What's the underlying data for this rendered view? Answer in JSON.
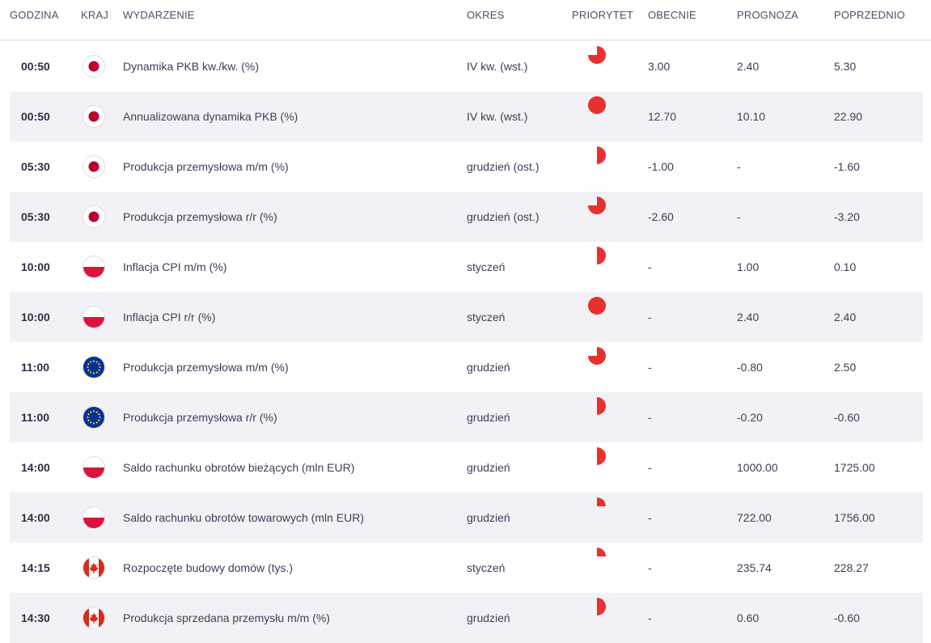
{
  "headers": {
    "time": "GODZINA",
    "country": "KRAJ",
    "event": "WYDARZENIE",
    "period": "OKRES",
    "priority": "PRIORYTET",
    "actual": "OBECNIE",
    "forecast": "PROGNOZA",
    "previous": "POPRZEDNIO"
  },
  "colors": {
    "priority": "#e8312f",
    "row_alt": "#f2f2f6",
    "divider": "#dcdde3"
  },
  "rows": [
    {
      "time": "00:50",
      "country_flag": "japan-flag-icon",
      "event": "Dynamika PKB kw./kw. (%)",
      "period": "IV kw. (wst.)",
      "priority": 0.75,
      "actual": "3.00",
      "forecast": "2.40",
      "previous": "5.30"
    },
    {
      "time": "00:50",
      "country_flag": "japan-flag-icon",
      "event": "Annualizowana dynamika PKB (%)",
      "period": "IV kw. (wst.)",
      "priority": 1.0,
      "actual": "12.70",
      "forecast": "10.10",
      "previous": "22.90"
    },
    {
      "time": "05:30",
      "country_flag": "japan-flag-icon",
      "event": "Produkcja przemysłowa m/m (%)",
      "period": "grudzień (ost.)",
      "priority": 0.5,
      "actual": "-1.00",
      "forecast": "-",
      "previous": "-1.60"
    },
    {
      "time": "05:30",
      "country_flag": "japan-flag-icon",
      "event": "Produkcja przemysłowa r/r (%)",
      "period": "grudzień (ost.)",
      "priority": 0.75,
      "actual": "-2.60",
      "forecast": "-",
      "previous": "-3.20"
    },
    {
      "time": "10:00",
      "country_flag": "poland-flag-icon",
      "event": "Inflacja CPI m/m (%)",
      "period": "styczeń",
      "priority": 0.5,
      "actual": "-",
      "forecast": "1.00",
      "previous": "0.10"
    },
    {
      "time": "10:00",
      "country_flag": "poland-flag-icon",
      "event": "Inflacja CPI r/r (%)",
      "period": "styczeń",
      "priority": 1.0,
      "actual": "-",
      "forecast": "2.40",
      "previous": "2.40"
    },
    {
      "time": "11:00",
      "country_flag": "eu-flag-icon",
      "event": "Produkcja przemysłowa m/m (%)",
      "period": "grudzień",
      "priority": 0.75,
      "actual": "-",
      "forecast": "-0.80",
      "previous": "2.50"
    },
    {
      "time": "11:00",
      "country_flag": "eu-flag-icon",
      "event": "Produkcja przemysłowa r/r (%)",
      "period": "grudzień",
      "priority": 0.5,
      "actual": "-",
      "forecast": "-0.20",
      "previous": "-0.60"
    },
    {
      "time": "14:00",
      "country_flag": "poland-flag-icon",
      "event": "Saldo rachunku obrotów bieżących (mln EUR)",
      "period": "grudzień",
      "priority": 0.5,
      "actual": "-",
      "forecast": "1000.00",
      "previous": "1725.00"
    },
    {
      "time": "14:00",
      "country_flag": "poland-flag-icon",
      "event": "Saldo rachunku obrotów towarowych (mln EUR)",
      "period": "grudzień",
      "priority": 0.25,
      "actual": "-",
      "forecast": "722.00",
      "previous": "1756.00"
    },
    {
      "time": "14:15",
      "country_flag": "canada-flag-icon",
      "event": "Rozpoczęte budowy domów (tys.)",
      "period": "styczeń",
      "priority": 0.25,
      "actual": "-",
      "forecast": "235.74",
      "previous": "228.27"
    },
    {
      "time": "14:30",
      "country_flag": "canada-flag-icon",
      "event": "Produkcja sprzedana przemysłu m/m (%)",
      "period": "grudzień",
      "priority": 0.5,
      "actual": "-",
      "forecast": "0.60",
      "previous": "-0.60"
    }
  ]
}
